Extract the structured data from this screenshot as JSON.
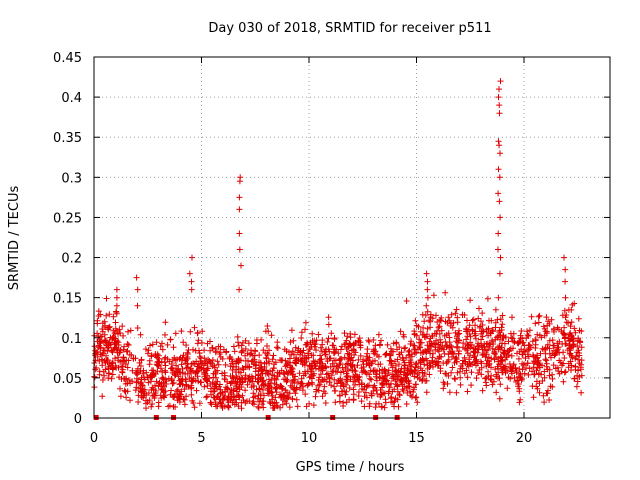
{
  "chart_data": {
    "type": "scatter",
    "title": "Day 030 of 2018, SRMTID for receiver p511",
    "xlabel": "GPS time / hours",
    "ylabel": "SRMTID / TECUs",
    "xlim": [
      0,
      24
    ],
    "ylim": [
      0,
      0.45
    ],
    "grid": true,
    "x_ticks": [
      0,
      5,
      10,
      15,
      20
    ],
    "x_tick_labels": [
      "0",
      "5",
      "10",
      "15",
      "20"
    ],
    "y_ticks": [
      0,
      0.05,
      0.1,
      0.15,
      0.2,
      0.25,
      0.3,
      0.35,
      0.4,
      0.45
    ],
    "y_tick_labels": [
      "0",
      "0.05",
      "0.1",
      "0.15",
      "0.2",
      "0.25",
      "0.3",
      "0.35",
      "0.4",
      "0.45"
    ],
    "marker": "+",
    "color": "#e00000",
    "x_range_hours": [
      0,
      22.7
    ],
    "baseline": [
      [
        0.0,
        0.075
      ],
      [
        0.5,
        0.09
      ],
      [
        1.0,
        0.085
      ],
      [
        1.5,
        0.065
      ],
      [
        2.0,
        0.06
      ],
      [
        2.5,
        0.045
      ],
      [
        3.0,
        0.05
      ],
      [
        3.5,
        0.052
      ],
      [
        4.0,
        0.05
      ],
      [
        4.5,
        0.06
      ],
      [
        5.0,
        0.065
      ],
      [
        5.5,
        0.05
      ],
      [
        6.0,
        0.04
      ],
      [
        6.5,
        0.04
      ],
      [
        7.0,
        0.055
      ],
      [
        7.5,
        0.05
      ],
      [
        8.0,
        0.055
      ],
      [
        8.5,
        0.04
      ],
      [
        9.0,
        0.045
      ],
      [
        9.5,
        0.06
      ],
      [
        10.0,
        0.065
      ],
      [
        10.5,
        0.06
      ],
      [
        11.0,
        0.065
      ],
      [
        11.5,
        0.055
      ],
      [
        12.0,
        0.06
      ],
      [
        12.5,
        0.055
      ],
      [
        13.0,
        0.06
      ],
      [
        13.5,
        0.045
      ],
      [
        14.0,
        0.05
      ],
      [
        14.5,
        0.06
      ],
      [
        15.0,
        0.065
      ],
      [
        15.5,
        0.09
      ],
      [
        16.0,
        0.09
      ],
      [
        16.5,
        0.085
      ],
      [
        17.0,
        0.09
      ],
      [
        17.5,
        0.09
      ],
      [
        18.0,
        0.085
      ],
      [
        18.5,
        0.085
      ],
      [
        19.0,
        0.08
      ],
      [
        19.5,
        0.075
      ],
      [
        20.0,
        0.07
      ],
      [
        20.5,
        0.08
      ],
      [
        21.0,
        0.075
      ],
      [
        21.5,
        0.08
      ],
      [
        22.0,
        0.09
      ],
      [
        22.5,
        0.08
      ],
      [
        22.7,
        0.075
      ]
    ],
    "spikes": [
      {
        "x": 4.5,
        "values": [
          0.16,
          0.17,
          0.18,
          0.2
        ]
      },
      {
        "x": 6.8,
        "values": [
          0.16,
          0.19,
          0.21,
          0.23,
          0.26,
          0.275,
          0.295,
          0.3
        ]
      },
      {
        "x": 18.85,
        "values": [
          0.15,
          0.18,
          0.2,
          0.21,
          0.23,
          0.25,
          0.27,
          0.28,
          0.3,
          0.31,
          0.33,
          0.34,
          0.345,
          0.38,
          0.39,
          0.4,
          0.41,
          0.42
        ]
      },
      {
        "x": 21.9,
        "values": [
          0.15,
          0.17,
          0.185,
          0.2
        ]
      },
      {
        "x": 1.1,
        "values": [
          0.13,
          0.14,
          0.15,
          0.16
        ]
      },
      {
        "x": 2.0,
        "values": [
          0.14,
          0.16,
          0.175
        ]
      },
      {
        "x": 15.5,
        "values": [
          0.14,
          0.15,
          0.16,
          0.17,
          0.18
        ]
      }
    ],
    "zero_points": [
      0.1,
      2.9,
      3.7,
      8.1,
      11.1,
      13.1,
      14.1
    ]
  }
}
